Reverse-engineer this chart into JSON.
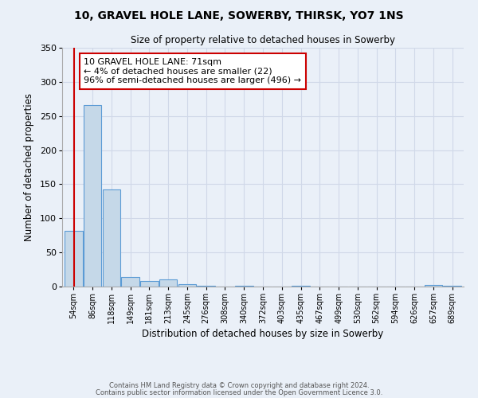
{
  "title": "10, GRAVEL HOLE LANE, SOWERBY, THIRSK, YO7 1NS",
  "subtitle": "Size of property relative to detached houses in Sowerby",
  "xlabel": "Distribution of detached houses by size in Sowerby",
  "ylabel": "Number of detached properties",
  "bin_labels": [
    "54sqm",
    "86sqm",
    "118sqm",
    "149sqm",
    "181sqm",
    "213sqm",
    "245sqm",
    "276sqm",
    "308sqm",
    "340sqm",
    "372sqm",
    "403sqm",
    "435sqm",
    "467sqm",
    "499sqm",
    "530sqm",
    "562sqm",
    "594sqm",
    "626sqm",
    "657sqm",
    "689sqm"
  ],
  "bar_heights": [
    82,
    266,
    142,
    14,
    8,
    10,
    4,
    1,
    0,
    1,
    0,
    0,
    1,
    0,
    0,
    0,
    0,
    0,
    0,
    2,
    1
  ],
  "bar_color": "#c5d8e8",
  "bar_edge_color": "#5b9bd5",
  "vline_color": "#cc0000",
  "annotation_text": "10 GRAVEL HOLE LANE: 71sqm\n← 4% of detached houses are smaller (22)\n96% of semi-detached houses are larger (496) →",
  "annotation_box_color": "#ffffff",
  "annotation_box_edge_color": "#cc0000",
  "ylim": [
    0,
    350
  ],
  "yticks": [
    0,
    50,
    100,
    150,
    200,
    250,
    300,
    350
  ],
  "grid_color": "#d0d8e8",
  "bg_color": "#eaf0f8",
  "footer_line1": "Contains HM Land Registry data © Crown copyright and database right 2024.",
  "footer_line2": "Contains public sector information licensed under the Open Government Licence 3.0."
}
